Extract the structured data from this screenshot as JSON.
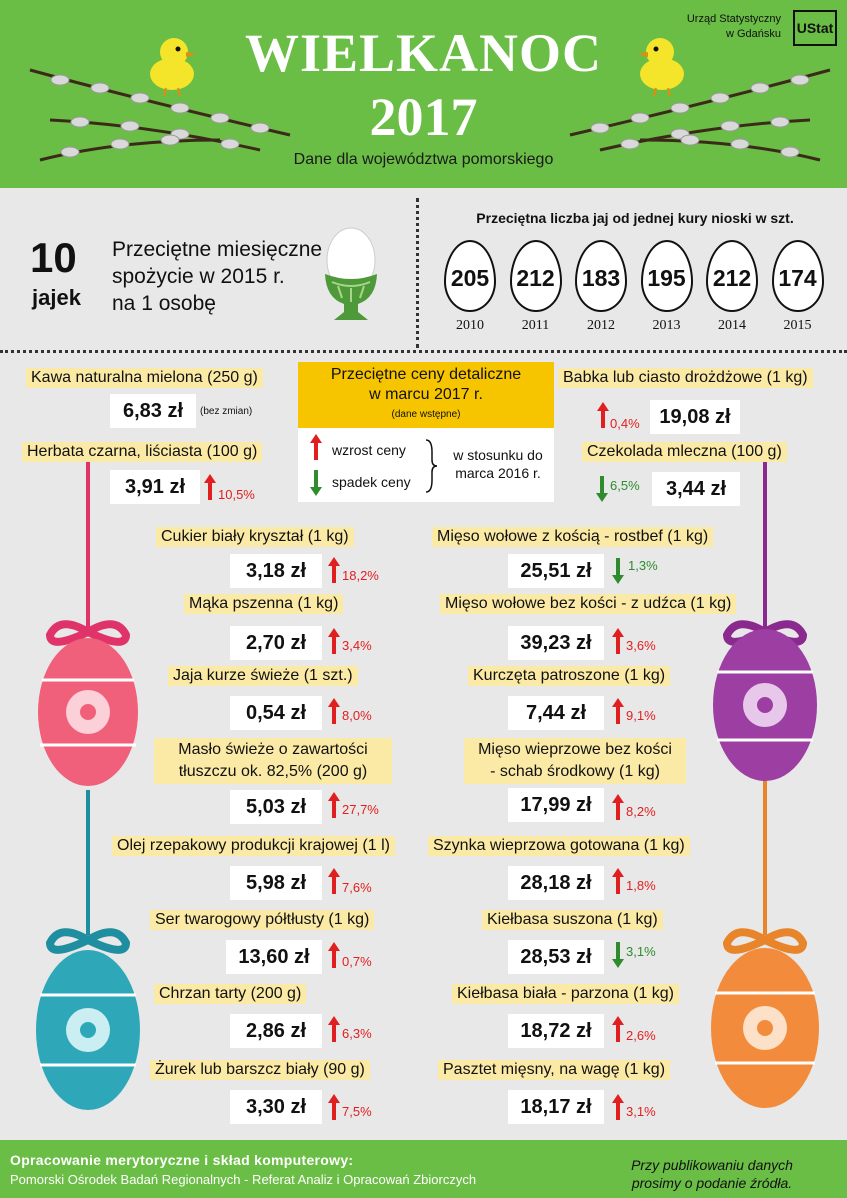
{
  "header": {
    "title_line1": "WIELKANOC",
    "title_line2": "2017",
    "subtitle": "Dane dla województwa pomorskiego",
    "office_line1": "Urząd Statystyczny",
    "office_line2": "w Gdańsku",
    "logo_text": "UStat",
    "brand_color": "#6abd45"
  },
  "consumption": {
    "number": "10",
    "unit": "jajek",
    "text_line1": "Przeciętne miesięczne",
    "text_line2": "spożycie w 2015 r.",
    "text_line3": "na 1 osobę"
  },
  "laying": {
    "heading": "Przeciętna liczba jaj od jednej kury nioski w szt.",
    "items": [
      {
        "value": "205",
        "year": "2010"
      },
      {
        "value": "212",
        "year": "2011"
      },
      {
        "value": "183",
        "year": "2012"
      },
      {
        "value": "195",
        "year": "2013"
      },
      {
        "value": "212",
        "year": "2014"
      },
      {
        "value": "174",
        "year": "2015"
      }
    ]
  },
  "legend": {
    "title_line1": "Przeciętne ceny detaliczne",
    "title_line2": "w marcu 2017 r.",
    "note": "(dane wstępne)",
    "up_label": "wzrost ceny",
    "down_label": "spadek ceny",
    "compare_line1": "w stosunku do",
    "compare_line2": "marca 2016 r.",
    "up_color": "#e02020",
    "down_color": "#2e8b2e"
  },
  "prices": {
    "kawa": {
      "label": "Kawa naturalna mielona (250 g)",
      "price": "6,83 zł",
      "change": "(bez zmian)"
    },
    "herbata": {
      "label": "Herbata czarna, liściasta (100 g)",
      "price": "3,91 zł",
      "change": "10,5%"
    },
    "babka": {
      "label": "Babka lub ciasto drożdżowe (1 kg)",
      "price": "19,08 zł",
      "change": "0,4%"
    },
    "czekolada": {
      "label": "Czekolada mleczna (100 g)",
      "price": "3,44 zł",
      "change": "6,5%"
    },
    "cukier": {
      "label": "Cukier biały kryształ (1 kg)",
      "price": "3,18 zł",
      "change": "18,2%"
    },
    "maka": {
      "label": "Mąka pszenna (1 kg)",
      "price": "2,70 zł",
      "change": "3,4%"
    },
    "jaja": {
      "label": "Jaja kurze świeże (1 szt.)",
      "price": "0,54 zł",
      "change": "8,0%"
    },
    "maslo": {
      "label_line1": "Masło świeże o zawartości",
      "label_line2": "tłuszczu ok. 82,5% (200 g)",
      "price": "5,03 zł",
      "change": "27,7%"
    },
    "olej": {
      "label": "Olej rzepakowy produkcji krajowej (1 l)",
      "price": "5,98 zł",
      "change": "7,6%"
    },
    "ser": {
      "label": "Ser twarogowy półtłusty (1 kg)",
      "price": "13,60 zł",
      "change": "0,7%"
    },
    "chrzan": {
      "label": "Chrzan tarty (200 g)",
      "price": "2,86 zł",
      "change": "6,3%"
    },
    "zurek": {
      "label": "Żurek lub barszcz biały (90 g)",
      "price": "3,30 zł",
      "change": "7,5%"
    },
    "rostbef": {
      "label": "Mięso wołowe z kością - rostbef (1 kg)",
      "price": "25,51 zł",
      "change": "1,3%"
    },
    "udziec": {
      "label": "Mięso wołowe bez kości - z udźca (1 kg)",
      "price": "39,23 zł",
      "change": "3,6%"
    },
    "kurczeta": {
      "label": "Kurczęta patroszone (1 kg)",
      "price": "7,44 zł",
      "change": "9,1%"
    },
    "schab": {
      "label_line1": "Mięso wieprzowe bez kości",
      "label_line2": "- schab środkowy (1 kg)",
      "price": "17,99 zł",
      "change": "8,2%"
    },
    "szynka": {
      "label": "Szynka wieprzowa gotowana (1 kg)",
      "price": "28,18 zł",
      "change": "1,8%"
    },
    "kielbasa_suszona": {
      "label": "Kiełbasa suszona (1 kg)",
      "price": "28,53 zł",
      "change": "3,1%"
    },
    "kielbasa_biala": {
      "label": "Kiełbasa biała - parzona (1 kg)",
      "price": "18,72 zł",
      "change": "2,6%"
    },
    "pasztet": {
      "label": "Pasztet mięsny, na wagę (1 kg)",
      "price": "18,17 zł",
      "change": "3,1%"
    }
  },
  "footer": {
    "line1": "Opracowanie merytoryczne i skład komputerowy:",
    "line2": "Pomorski Ośrodek Badań Regionalnych - Referat Analiz i Opracowań Zbiorczych",
    "note_line1": "Przy publikowaniu danych",
    "note_line2": "prosimy o podanie źródła."
  }
}
